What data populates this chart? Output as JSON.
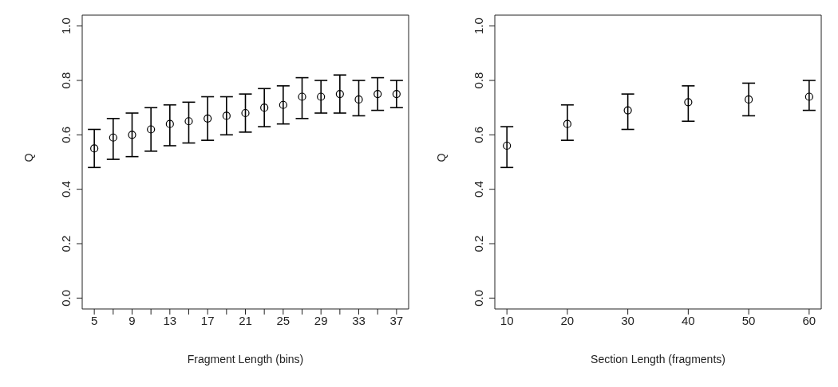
{
  "chart_data": [
    {
      "type": "scatter",
      "xlabel": "Fragment Length (bins)",
      "ylabel": "Q",
      "marker": "circle",
      "grid": false,
      "x": [
        5,
        7,
        9,
        11,
        13,
        15,
        17,
        19,
        21,
        23,
        25,
        27,
        29,
        31,
        33,
        35,
        37
      ],
      "series": [
        {
          "color": "#000000",
          "values": [
            0.55,
            0.59,
            0.6,
            0.62,
            0.64,
            0.65,
            0.66,
            0.67,
            0.68,
            0.7,
            0.71,
            0.74,
            0.74,
            0.75,
            0.73,
            0.75,
            0.75
          ],
          "errors": [
            [
              0.48,
              0.62
            ],
            [
              0.51,
              0.66
            ],
            [
              0.52,
              0.68
            ],
            [
              0.54,
              0.7
            ],
            [
              0.56,
              0.71
            ],
            [
              0.57,
              0.72
            ],
            [
              0.58,
              0.74
            ],
            [
              0.6,
              0.74
            ],
            [
              0.61,
              0.75
            ],
            [
              0.63,
              0.77
            ],
            [
              0.64,
              0.78
            ],
            [
              0.66,
              0.81
            ],
            [
              0.68,
              0.8
            ],
            [
              0.68,
              0.82
            ],
            [
              0.67,
              0.8
            ],
            [
              0.69,
              0.81
            ],
            [
              0.7,
              0.8
            ]
          ]
        }
      ],
      "xlim": [
        3.72,
        38.28
      ],
      "xticks": [
        5,
        {
          "value": 7,
          "label": null
        },
        9,
        {
          "value": 11,
          "label": null
        },
        13,
        {
          "value": 15,
          "label": null
        },
        17,
        {
          "value": 19,
          "label": null
        },
        21,
        {
          "value": 23,
          "label": null
        },
        25,
        {
          "value": 27,
          "label": null
        },
        29,
        {
          "value": 31,
          "label": null
        },
        33,
        {
          "value": 35,
          "label": null
        },
        37
      ],
      "ylim": [
        -0.04,
        1.04
      ],
      "yticks": [
        {
          "value": 0,
          "label": "0.0"
        },
        {
          "value": 0.2,
          "label": "0.2"
        },
        {
          "value": 0.4,
          "label": "0.4"
        },
        {
          "value": 0.6,
          "label": "0.6"
        },
        {
          "value": 0.8,
          "label": "0.8"
        },
        {
          "value": 1,
          "label": "1.0"
        }
      ]
    },
    {
      "type": "scatter",
      "xlabel": "Section Length (fragments)",
      "ylabel": "Q",
      "marker": "circle",
      "grid": false,
      "x": [
        10,
        20,
        30,
        40,
        50,
        60
      ],
      "series": [
        {
          "color": "#000000",
          "values": [
            0.56,
            0.64,
            0.69,
            0.72,
            0.73,
            0.74
          ],
          "errors": [
            [
              0.48,
              0.63
            ],
            [
              0.58,
              0.71
            ],
            [
              0.62,
              0.75
            ],
            [
              0.65,
              0.78
            ],
            [
              0.67,
              0.79
            ],
            [
              0.69,
              0.8
            ]
          ]
        }
      ],
      "xlim": [
        8,
        62
      ],
      "xticks": [
        10,
        20,
        30,
        40,
        50,
        60
      ],
      "ylim": [
        -0.04,
        1.04
      ],
      "yticks": [
        {
          "value": 0,
          "label": "0.0"
        },
        {
          "value": 0.2,
          "label": "0.2"
        },
        {
          "value": 0.4,
          "label": "0.4"
        },
        {
          "value": 0.6,
          "label": "0.6"
        },
        {
          "value": 0.8,
          "label": "0.8"
        },
        {
          "value": 1,
          "label": "1.0"
        }
      ]
    }
  ]
}
